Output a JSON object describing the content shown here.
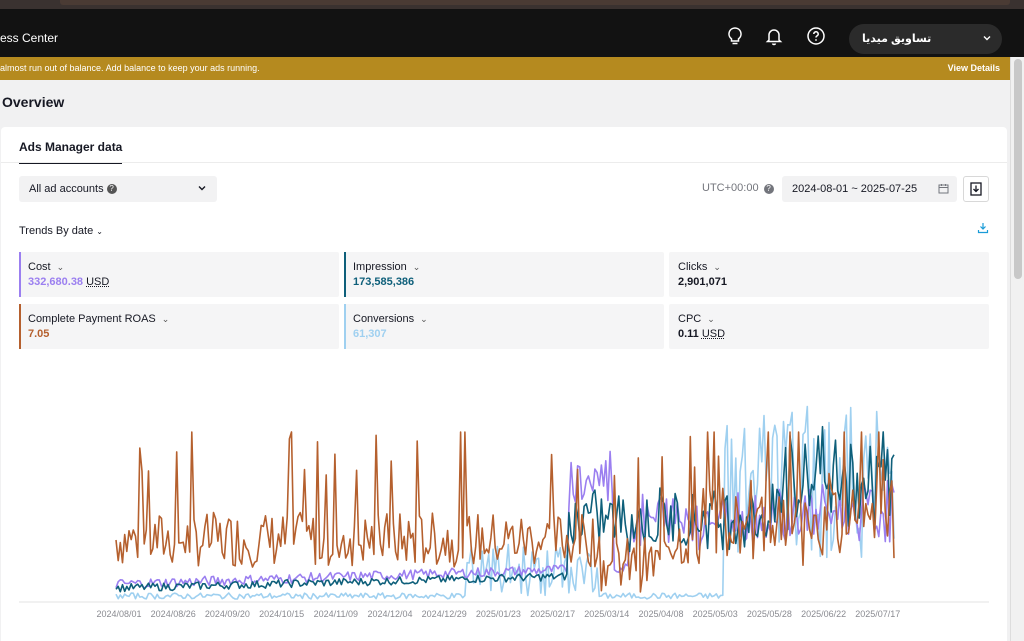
{
  "header": {
    "app_title": "ess Center",
    "account_name": "تساويق ميديا"
  },
  "banner": {
    "message": "almost run out of balance. Add balance to keep your ads running.",
    "link": "View Details"
  },
  "page": {
    "title": "Overview",
    "tab": "Ads Manager data",
    "account_filter": "All ad accounts",
    "timezone": "UTC+00:00",
    "date_range": "2024-08-01 ~ 2025-07-25",
    "trends_label": "Trends By date"
  },
  "metrics": [
    {
      "label": "Cost",
      "value": "332,680.38",
      "unit": "USD",
      "color": "#9b7ff0"
    },
    {
      "label": "Impression",
      "value": "173,585,386",
      "unit": "",
      "color": "#0e5f7a"
    },
    {
      "label": "Clicks",
      "value": "2,901,071",
      "unit": "",
      "color": ""
    },
    {
      "label": "Complete Payment ROAS",
      "value": "7.05",
      "unit": "",
      "color": "#b5602e"
    },
    {
      "label": "Conversions",
      "value": "61,307",
      "unit": "",
      "color": "#9fd0f0"
    },
    {
      "label": "CPC",
      "value": "0.11",
      "unit": "USD",
      "color": ""
    }
  ],
  "chart_data": {
    "type": "line",
    "x_ticks": [
      "2024/08/01",
      "2024/08/26",
      "2024/09/20",
      "2024/10/15",
      "2024/11/09",
      "2024/12/04",
      "2024/12/29",
      "2025/01/23",
      "2025/02/17",
      "2025/03/14",
      "2025/04/08",
      "2025/05/03",
      "2025/05/28",
      "2025/06/22",
      "2025/07/17"
    ],
    "series": [
      {
        "name": "Complete Payment ROAS",
        "color": "#b5602e"
      },
      {
        "name": "Impression",
        "color": "#0e5f7a"
      },
      {
        "name": "Cost",
        "color": "#9b7ff0"
      },
      {
        "name": "Conversions",
        "color": "#9fd0f0"
      }
    ]
  }
}
